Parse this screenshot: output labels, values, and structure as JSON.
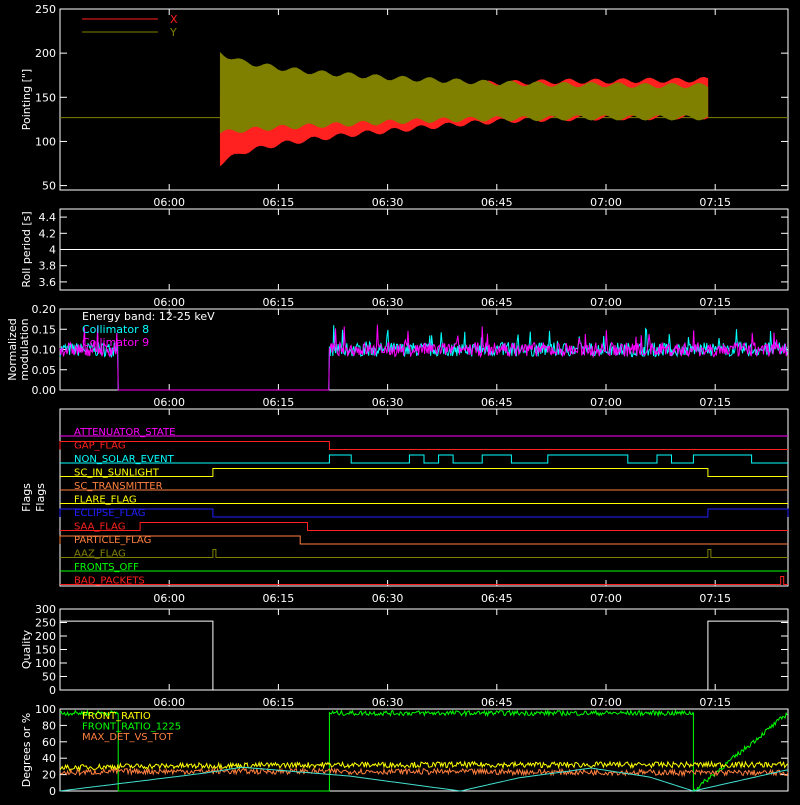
{
  "chart_data": [
    {
      "type": "line",
      "ylabel": "Pointing [\"]",
      "ylim": [
        45,
        250
      ],
      "yticks": [
        50,
        100,
        150,
        200,
        250
      ],
      "xlim": [
        "05:45",
        "07:25"
      ],
      "xticks": [
        "06:00",
        "06:15",
        "06:30",
        "06:45",
        "07:00",
        "07:15"
      ],
      "legend": [
        {
          "label": "X",
          "color": "#ff2020"
        },
        {
          "label": "Y",
          "color": "#808000"
        }
      ],
      "baseline": {
        "value": 127,
        "color": "#808000"
      },
      "series": [
        {
          "name": "X",
          "color": "#ff2020",
          "x": [
            "06:07",
            "06:10",
            "06:15",
            "06:20",
            "06:25",
            "06:30",
            "06:35",
            "06:40",
            "06:45",
            "06:50",
            "06:55",
            "07:00",
            "07:05",
            "07:10",
            "07:14"
          ],
          "upper": [
            150,
            152,
            155,
            158,
            160,
            162,
            163,
            165,
            166,
            167,
            168,
            168,
            169,
            169,
            170
          ],
          "lower": [
            75,
            88,
            97,
            103,
            108,
            112,
            116,
            120,
            123,
            125,
            126,
            127,
            127,
            128,
            128
          ]
        },
        {
          "name": "Y",
          "color": "#808000",
          "x": [
            "06:07",
            "06:10",
            "06:15",
            "06:20",
            "06:25",
            "06:30",
            "06:35",
            "06:40",
            "06:45",
            "06:50",
            "06:55",
            "07:00",
            "07:05",
            "07:10",
            "07:14"
          ],
          "upper": [
            200,
            190,
            183,
            178,
            175,
            172,
            170,
            168,
            166,
            165,
            164,
            164,
            163,
            163,
            163
          ],
          "lower": [
            110,
            113,
            116,
            118,
            120,
            122,
            124,
            125,
            126,
            126,
            127,
            127,
            127,
            127,
            127
          ]
        }
      ]
    },
    {
      "type": "line",
      "ylabel": "Roll period [s]",
      "ylim": [
        3.5,
        4.5
      ],
      "yticks": [
        3.6,
        3.8,
        4.0,
        4.2,
        4.4
      ],
      "xlim": [
        "05:45",
        "07:25"
      ],
      "xticks": [
        "06:00",
        "06:15",
        "06:30",
        "06:45",
        "07:00",
        "07:15"
      ],
      "series": [
        {
          "color": "#ffffff",
          "x": [
            "05:45",
            "07:25"
          ],
          "y": [
            4.0,
            4.0
          ]
        }
      ]
    },
    {
      "type": "line",
      "ylabel": "Normalized modulation",
      "ylim": [
        0.0,
        0.2
      ],
      "yticks": [
        "0.00",
        "0.05",
        "0.10",
        "0.15",
        "0.20"
      ],
      "xlim": [
        "05:45",
        "07:25"
      ],
      "xticks": [
        "06:00",
        "06:15",
        "06:30",
        "06:45",
        "07:00",
        "07:15"
      ],
      "annotation": "Energy band: 12-25 keV",
      "legend": [
        {
          "label": "Collimator 8",
          "color": "#00ffff"
        },
        {
          "label": "Collimator 9",
          "color": "#ff00ff"
        }
      ],
      "segments": [
        {
          "x": [
            "05:45",
            "05:53"
          ],
          "mean": 0.1
        },
        {
          "x": [
            "05:53",
            "06:22"
          ],
          "mean": 0.0
        },
        {
          "x": [
            "06:22",
            "07:25"
          ],
          "mean": 0.1
        }
      ]
    },
    {
      "type": "line",
      "ylabel": "Flags",
      "xlim": [
        "05:45",
        "07:25"
      ],
      "xticks": [
        "06:00",
        "06:15",
        "06:30",
        "06:45",
        "07:00",
        "07:15"
      ],
      "flags": [
        {
          "label": "ATTENUATOR_STATE",
          "color": "#ff00ff",
          "on": []
        },
        {
          "label": "GAP_FLAG",
          "color": "#ff2020",
          "on": [
            [
              "05:45",
              "06:22"
            ]
          ]
        },
        {
          "label": "NON_SOLAR_EVENT",
          "color": "#00ffff",
          "on": [
            [
              "06:22",
              "06:25"
            ],
            [
              "06:33",
              "06:35"
            ],
            [
              "06:37",
              "06:39"
            ],
            [
              "06:43",
              "06:47"
            ],
            [
              "06:52",
              "07:03"
            ],
            [
              "07:07",
              "07:09"
            ],
            [
              "07:12",
              "07:20"
            ]
          ]
        },
        {
          "label": "SC_IN_SUNLIGHT",
          "color": "#ffff00",
          "on": [
            [
              "06:06",
              "07:14"
            ]
          ]
        },
        {
          "label": "SC_TRANSMITTER",
          "color": "#ff8040",
          "on": []
        },
        {
          "label": "FLARE_FLAG",
          "color": "#ffff00",
          "on": []
        },
        {
          "label": "ECLIPSE_FLAG",
          "color": "#2020ff",
          "on": [
            [
              "05:45",
              "06:06"
            ],
            [
              "07:14",
              "07:25"
            ]
          ]
        },
        {
          "label": "SAA_FLAG",
          "color": "#ff2020",
          "on": [
            [
              "05:56",
              "06:19"
            ]
          ]
        },
        {
          "label": "PARTICLE_FLAG",
          "color": "#ff8040",
          "on": [
            [
              "05:45",
              "06:18"
            ]
          ]
        },
        {
          "label": "AAZ_FLAG",
          "color": "#808000",
          "on": [
            [
              "06:06",
              "06:06"
            ],
            [
              "07:14",
              "07:14"
            ]
          ]
        },
        {
          "label": "FRONTS_OFF",
          "color": "#00ff00",
          "on": []
        },
        {
          "label": "BAD_PACKETS",
          "color": "#ff2020",
          "on": [
            [
              "07:24",
              "07:24"
            ]
          ]
        }
      ]
    },
    {
      "type": "line",
      "ylabel": "Quality",
      "ylim": [
        0,
        300
      ],
      "yticks": [
        0,
        50,
        100,
        150,
        200,
        250,
        300
      ],
      "xlim": [
        "05:45",
        "07:25"
      ],
      "xticks": [
        "06:00",
        "06:15",
        "06:30",
        "06:45",
        "07:00",
        "07:15"
      ],
      "series": [
        {
          "color": "#ffffff",
          "x": [
            "05:45",
            "06:06",
            "06:06",
            "07:14",
            "07:14",
            "07:25"
          ],
          "y": [
            255,
            255,
            0,
            0,
            255,
            255
          ]
        }
      ]
    },
    {
      "type": "line",
      "ylabel": "Degrees or %",
      "ylim": [
        0,
        100
      ],
      "yticks": [
        0,
        20,
        40,
        60,
        80,
        100
      ],
      "xlim": [
        "05:45",
        "07:25"
      ],
      "xticks": [],
      "legend": [
        {
          "label": "FRONT_RATIO",
          "color": "#ffff00"
        },
        {
          "label": "FRONT_RATIO_1225",
          "color": "#00ff00"
        },
        {
          "label": "MAX_DET_VS_TOT",
          "color": "#ff8040"
        }
      ],
      "series": [
        {
          "name": "FRONT_RATIO_1225",
          "color": "#00ff00",
          "x": [
            "05:45",
            "05:53",
            "05:53",
            "06:22",
            "06:22",
            "07:12",
            "07:12",
            "07:25"
          ],
          "y": [
            95,
            95,
            0,
            0,
            95,
            95,
            0,
            95
          ]
        },
        {
          "name": "FRONT_RATIO",
          "color": "#ffff00",
          "x": [
            "05:45",
            "05:53",
            "06:22",
            "07:25"
          ],
          "y": [
            28,
            30,
            32,
            32
          ]
        },
        {
          "name": "MAX_DET_VS_TOT",
          "color": "#ff8040",
          "x": [
            "05:45",
            "05:53",
            "06:22",
            "07:25"
          ],
          "y": [
            22,
            24,
            24,
            22
          ]
        },
        {
          "color": "#40e0d0",
          "x": [
            "05:45",
            "06:05",
            "06:10",
            "06:25",
            "06:40",
            "06:48",
            "06:58",
            "07:06",
            "07:12",
            "07:25"
          ],
          "y": [
            0,
            22,
            29,
            18,
            0,
            16,
            28,
            17,
            0,
            26
          ]
        }
      ]
    }
  ]
}
